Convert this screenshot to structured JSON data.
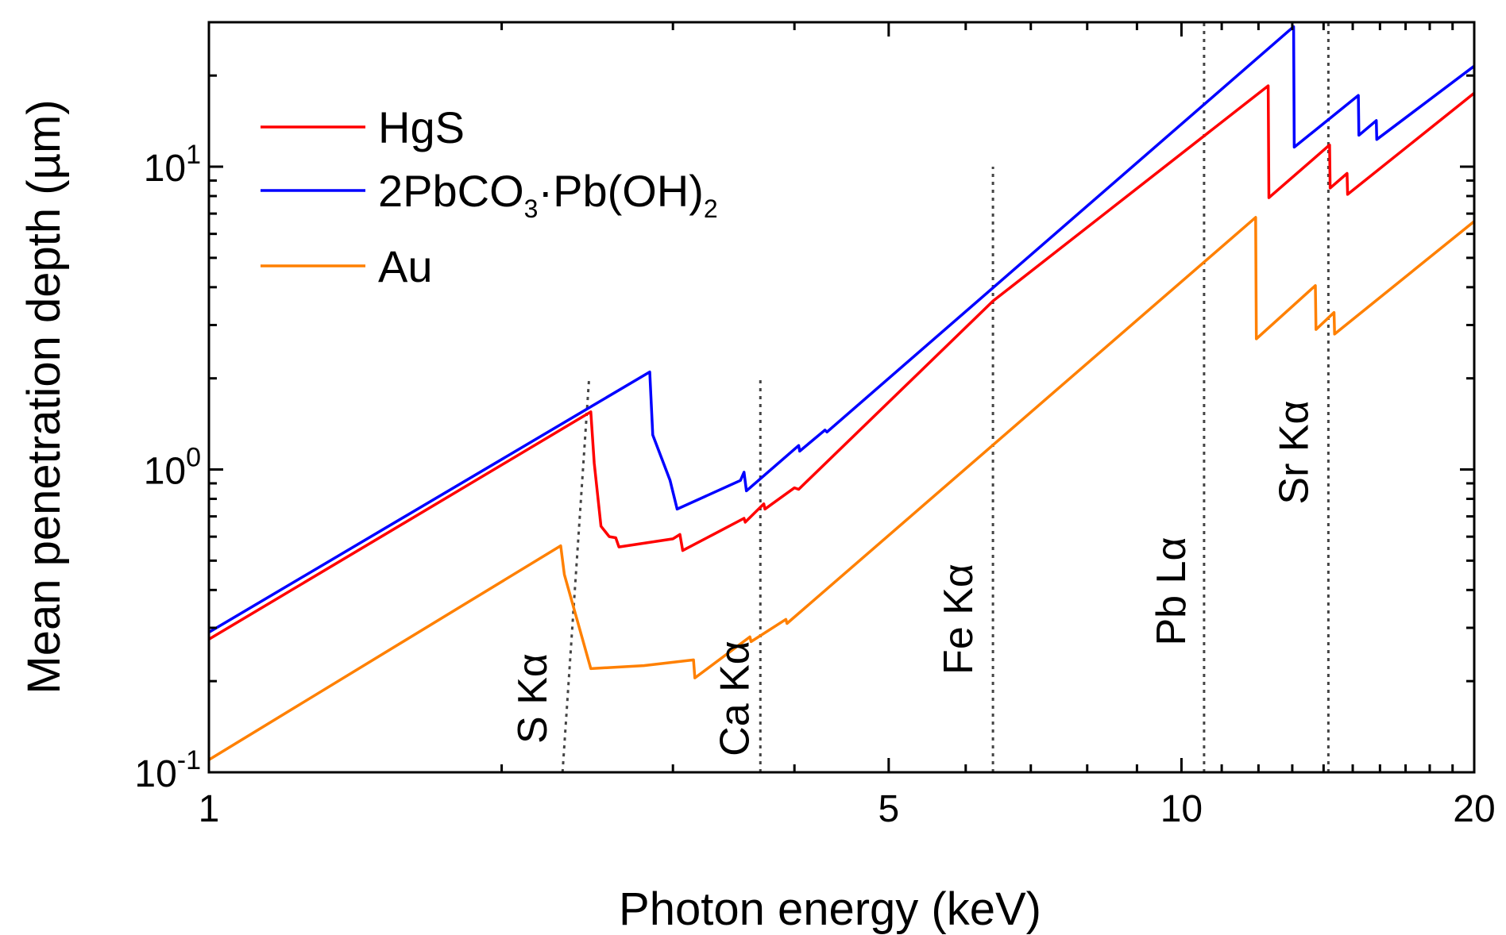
{
  "chart_data": {
    "type": "line",
    "xlabel": "Photon energy (keV)",
    "ylabel": "Mean penetration depth (µm)",
    "xscale": "log",
    "yscale": "log",
    "xlim": [
      1,
      20
    ],
    "ylim": [
      0.1,
      30
    ],
    "x_ticks": [
      {
        "value": 1,
        "label": "1"
      },
      {
        "value": 5,
        "label": "5"
      },
      {
        "value": 10,
        "label": "10"
      },
      {
        "value": 20,
        "label": "20"
      }
    ],
    "y_ticks": [
      {
        "value": 0.1,
        "base": "10",
        "exp": "-1"
      },
      {
        "value": 1,
        "base": "10",
        "exp": "0"
      },
      {
        "value": 10,
        "base": "10",
        "exp": "1"
      }
    ],
    "legend_position": "top-left",
    "series": [
      {
        "name": "HgS",
        "color": "#ff0000",
        "points": [
          [
            1,
            0.275
          ],
          [
            2.47,
            1.55
          ],
          [
            2.49,
            1.05
          ],
          [
            2.53,
            0.65
          ],
          [
            2.58,
            0.6
          ],
          [
            2.62,
            0.595
          ],
          [
            2.64,
            0.555
          ],
          [
            3.0,
            0.59
          ],
          [
            3.05,
            0.61
          ],
          [
            3.07,
            0.54
          ],
          [
            3.3,
            0.61
          ],
          [
            3.55,
            0.69
          ],
          [
            3.56,
            0.67
          ],
          [
            3.72,
            0.77
          ],
          [
            3.73,
            0.74
          ],
          [
            4.0,
            0.87
          ],
          [
            4.04,
            0.86
          ],
          [
            6.4,
            3.6
          ],
          [
            12.28,
            18.5
          ],
          [
            12.3,
            7.9
          ],
          [
            14.2,
            11.8
          ],
          [
            14.22,
            8.5
          ],
          [
            14.8,
            9.5
          ],
          [
            14.82,
            8.1
          ],
          [
            20,
            17.5
          ]
        ]
      },
      {
        "name": "2PbCO<sub>3</sub>·Pb(OH)<sub>2</sub>",
        "name_parts": [
          "2PbCO",
          "3",
          "·Pb(OH)",
          "2"
        ],
        "color": "#0000ff",
        "points": [
          [
            1,
            0.29
          ],
          [
            2.84,
            2.1
          ],
          [
            2.86,
            1.3
          ],
          [
            2.98,
            0.92
          ],
          [
            3.03,
            0.74
          ],
          [
            3.52,
            0.92
          ],
          [
            3.55,
            0.98
          ],
          [
            3.57,
            0.85
          ],
          [
            4.04,
            1.2
          ],
          [
            4.05,
            1.15
          ],
          [
            4.3,
            1.35
          ],
          [
            4.32,
            1.33
          ],
          [
            13.04,
            29
          ],
          [
            13.06,
            11.6
          ],
          [
            15.2,
            17.2
          ],
          [
            15.22,
            12.7
          ],
          [
            15.86,
            14.2
          ],
          [
            15.88,
            12.3
          ],
          [
            20,
            21.5
          ]
        ]
      },
      {
        "name": "Au",
        "color": "#ff8000",
        "points": [
          [
            1,
            0.11
          ],
          [
            2.3,
            0.56
          ],
          [
            2.32,
            0.45
          ],
          [
            2.47,
            0.22
          ],
          [
            2.8,
            0.225
          ],
          [
            3.15,
            0.235
          ],
          [
            3.16,
            0.205
          ],
          [
            3.6,
            0.28
          ],
          [
            3.61,
            0.27
          ],
          [
            3.92,
            0.32
          ],
          [
            3.93,
            0.31
          ],
          [
            11.92,
            6.8
          ],
          [
            11.94,
            2.7
          ],
          [
            13.73,
            4.05
          ],
          [
            13.75,
            2.9
          ],
          [
            14.35,
            3.3
          ],
          [
            14.37,
            2.8
          ],
          [
            20,
            6.6
          ]
        ]
      }
    ],
    "reference_lines": [
      {
        "label": "S Kα",
        "x_bottom": 2.31,
        "x_top": 2.46,
        "y_top": 2.0
      },
      {
        "label": "Ca Kα",
        "x_bottom": 3.69,
        "x_top": 3.69,
        "y_top": 2.0
      },
      {
        "label": "Fe Kα",
        "x_bottom": 6.4,
        "x_top": 6.4,
        "y_top": 10.0
      },
      {
        "label": "Pb Lα",
        "x_bottom": 10.55,
        "x_top": 10.55,
        "y_top": 30
      },
      {
        "label": "Sr Kα",
        "x_bottom": 14.16,
        "x_top": 14.16,
        "y_top": 30
      }
    ]
  }
}
